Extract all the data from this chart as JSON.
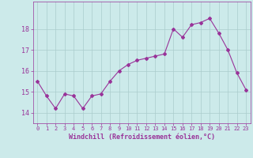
{
  "x": [
    0,
    1,
    2,
    3,
    4,
    5,
    6,
    7,
    8,
    9,
    10,
    11,
    12,
    13,
    14,
    15,
    16,
    17,
    18,
    19,
    20,
    21,
    22,
    23
  ],
  "y": [
    15.5,
    14.8,
    14.2,
    14.9,
    14.8,
    14.2,
    14.8,
    14.9,
    15.5,
    16.0,
    16.3,
    16.5,
    16.6,
    16.7,
    16.8,
    18.0,
    17.6,
    18.2,
    18.3,
    18.5,
    17.8,
    17.0,
    15.9,
    15.1
  ],
  "line_color": "#993399",
  "marker": "D",
  "marker_size": 2.0,
  "bg_color": "#cceaea",
  "grid_color": "#aacccc",
  "xlabel": "Windchill (Refroidissement éolien,°C)",
  "xlabel_color": "#993399",
  "tick_color": "#993399",
  "ylim": [
    13.5,
    19.3
  ],
  "yticks": [
    14,
    15,
    16,
    17,
    18
  ],
  "xlim": [
    -0.5,
    23.5
  ],
  "xticks": [
    0,
    1,
    2,
    3,
    4,
    5,
    6,
    7,
    8,
    9,
    10,
    11,
    12,
    13,
    14,
    15,
    16,
    17,
    18,
    19,
    20,
    21,
    22,
    23
  ]
}
